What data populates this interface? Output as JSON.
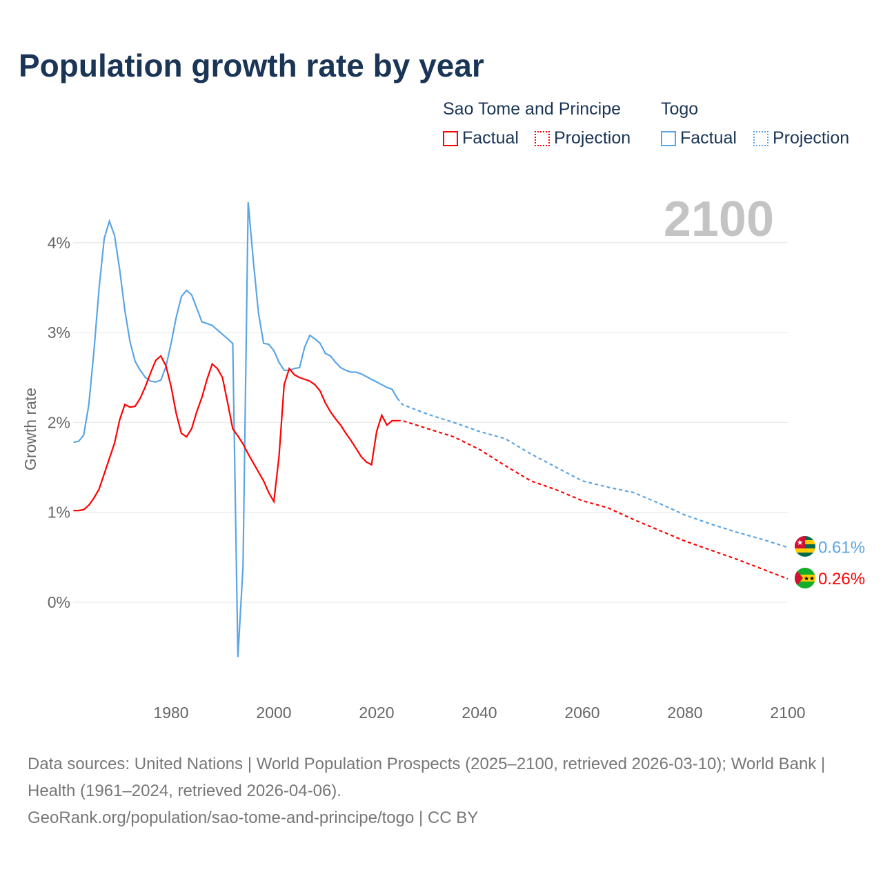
{
  "title": "Population growth rate by year",
  "legend": {
    "groups": [
      {
        "name": "Sao Tome and Principe",
        "color": "#ff0000",
        "factual": "Factual",
        "projection": "Projection"
      },
      {
        "name": "Togo",
        "color": "#5aa5e6",
        "factual": "Factual",
        "projection": "Projection"
      }
    ]
  },
  "year_label": "2100",
  "footer": {
    "sources": "Data sources: United Nations | World Population Prospects (2025–2100, retrieved 2026-03-10); World Bank | Health (1961–2024, retrieved 2026-04-06).",
    "credit": "GeoRank.org/population/sao-tome-and-principe/togo | CC BY"
  },
  "chart_data": {
    "type": "line",
    "title": "Population growth rate by year",
    "xlabel": "",
    "ylabel": "Growth rate",
    "xlim": [
      1961,
      2100
    ],
    "ylim": [
      -1,
      4.6
    ],
    "xticks": [
      1980,
      2000,
      2020,
      2040,
      2060,
      2080,
      2100
    ],
    "yticks": [
      0,
      1,
      2,
      3,
      4
    ],
    "ytick_labels": [
      "0%",
      "1%",
      "2%",
      "3%",
      "4%"
    ],
    "grid": true,
    "series": [
      {
        "name": "Togo",
        "color": "#5aa5e6",
        "end_label": "0.61%",
        "factual": {
          "start": 1961,
          "values": [
            1.78,
            1.79,
            1.86,
            2.2,
            2.8,
            3.5,
            4.05,
            4.24,
            4.08,
            3.7,
            3.25,
            2.9,
            2.68,
            2.58,
            2.5,
            2.46,
            2.45,
            2.47,
            2.62,
            2.88,
            3.17,
            3.4,
            3.47,
            3.42,
            3.27,
            3.12,
            3.1,
            3.08,
            3.03,
            2.98,
            2.93,
            2.88,
            -0.61,
            0.4,
            4.45,
            3.8,
            3.22,
            2.88,
            2.87,
            2.8,
            2.67,
            2.58,
            2.58,
            2.6,
            2.61,
            2.84,
            2.97,
            2.93,
            2.88,
            2.77,
            2.74,
            2.67,
            2.61,
            2.58,
            2.56,
            2.56,
            2.54,
            2.51,
            2.48,
            2.45,
            2.42,
            2.39,
            2.37,
            2.27
          ]
        },
        "projection": {
          "x": [
            2024,
            2025,
            2030,
            2035,
            2040,
            2045,
            2050,
            2055,
            2060,
            2065,
            2070,
            2075,
            2080,
            2085,
            2090,
            2095,
            2100
          ],
          "values": [
            2.27,
            2.2,
            2.09,
            2.0,
            1.9,
            1.82,
            1.65,
            1.5,
            1.35,
            1.28,
            1.22,
            1.1,
            0.97,
            0.87,
            0.78,
            0.7,
            0.61
          ]
        }
      },
      {
        "name": "Sao Tome and Principe",
        "color": "#ff0000",
        "end_label": "0.26%",
        "factual": {
          "start": 1961,
          "values": [
            1.02,
            1.02,
            1.03,
            1.08,
            1.16,
            1.26,
            1.43,
            1.6,
            1.77,
            2.03,
            2.2,
            2.17,
            2.18,
            2.27,
            2.4,
            2.55,
            2.69,
            2.74,
            2.63,
            2.4,
            2.1,
            1.88,
            1.84,
            1.93,
            2.12,
            2.28,
            2.48,
            2.65,
            2.6,
            2.5,
            2.22,
            1.93,
            1.85,
            1.76,
            1.65,
            1.55,
            1.45,
            1.35,
            1.22,
            1.12,
            1.62,
            2.42,
            2.6,
            2.53,
            2.5,
            2.48,
            2.46,
            2.42,
            2.35,
            2.22,
            2.12,
            2.04,
            1.97,
            1.88,
            1.8,
            1.71,
            1.62,
            1.56,
            1.53,
            1.9,
            2.08,
            1.97,
            2.02,
            2.02
          ]
        },
        "projection": {
          "x": [
            2024,
            2025,
            2030,
            2035,
            2040,
            2045,
            2050,
            2055,
            2060,
            2065,
            2070,
            2075,
            2080,
            2085,
            2090,
            2095,
            2100
          ],
          "values": [
            2.02,
            2.02,
            1.93,
            1.84,
            1.7,
            1.52,
            1.35,
            1.25,
            1.13,
            1.05,
            0.92,
            0.8,
            0.68,
            0.58,
            0.48,
            0.37,
            0.26
          ]
        }
      }
    ]
  }
}
